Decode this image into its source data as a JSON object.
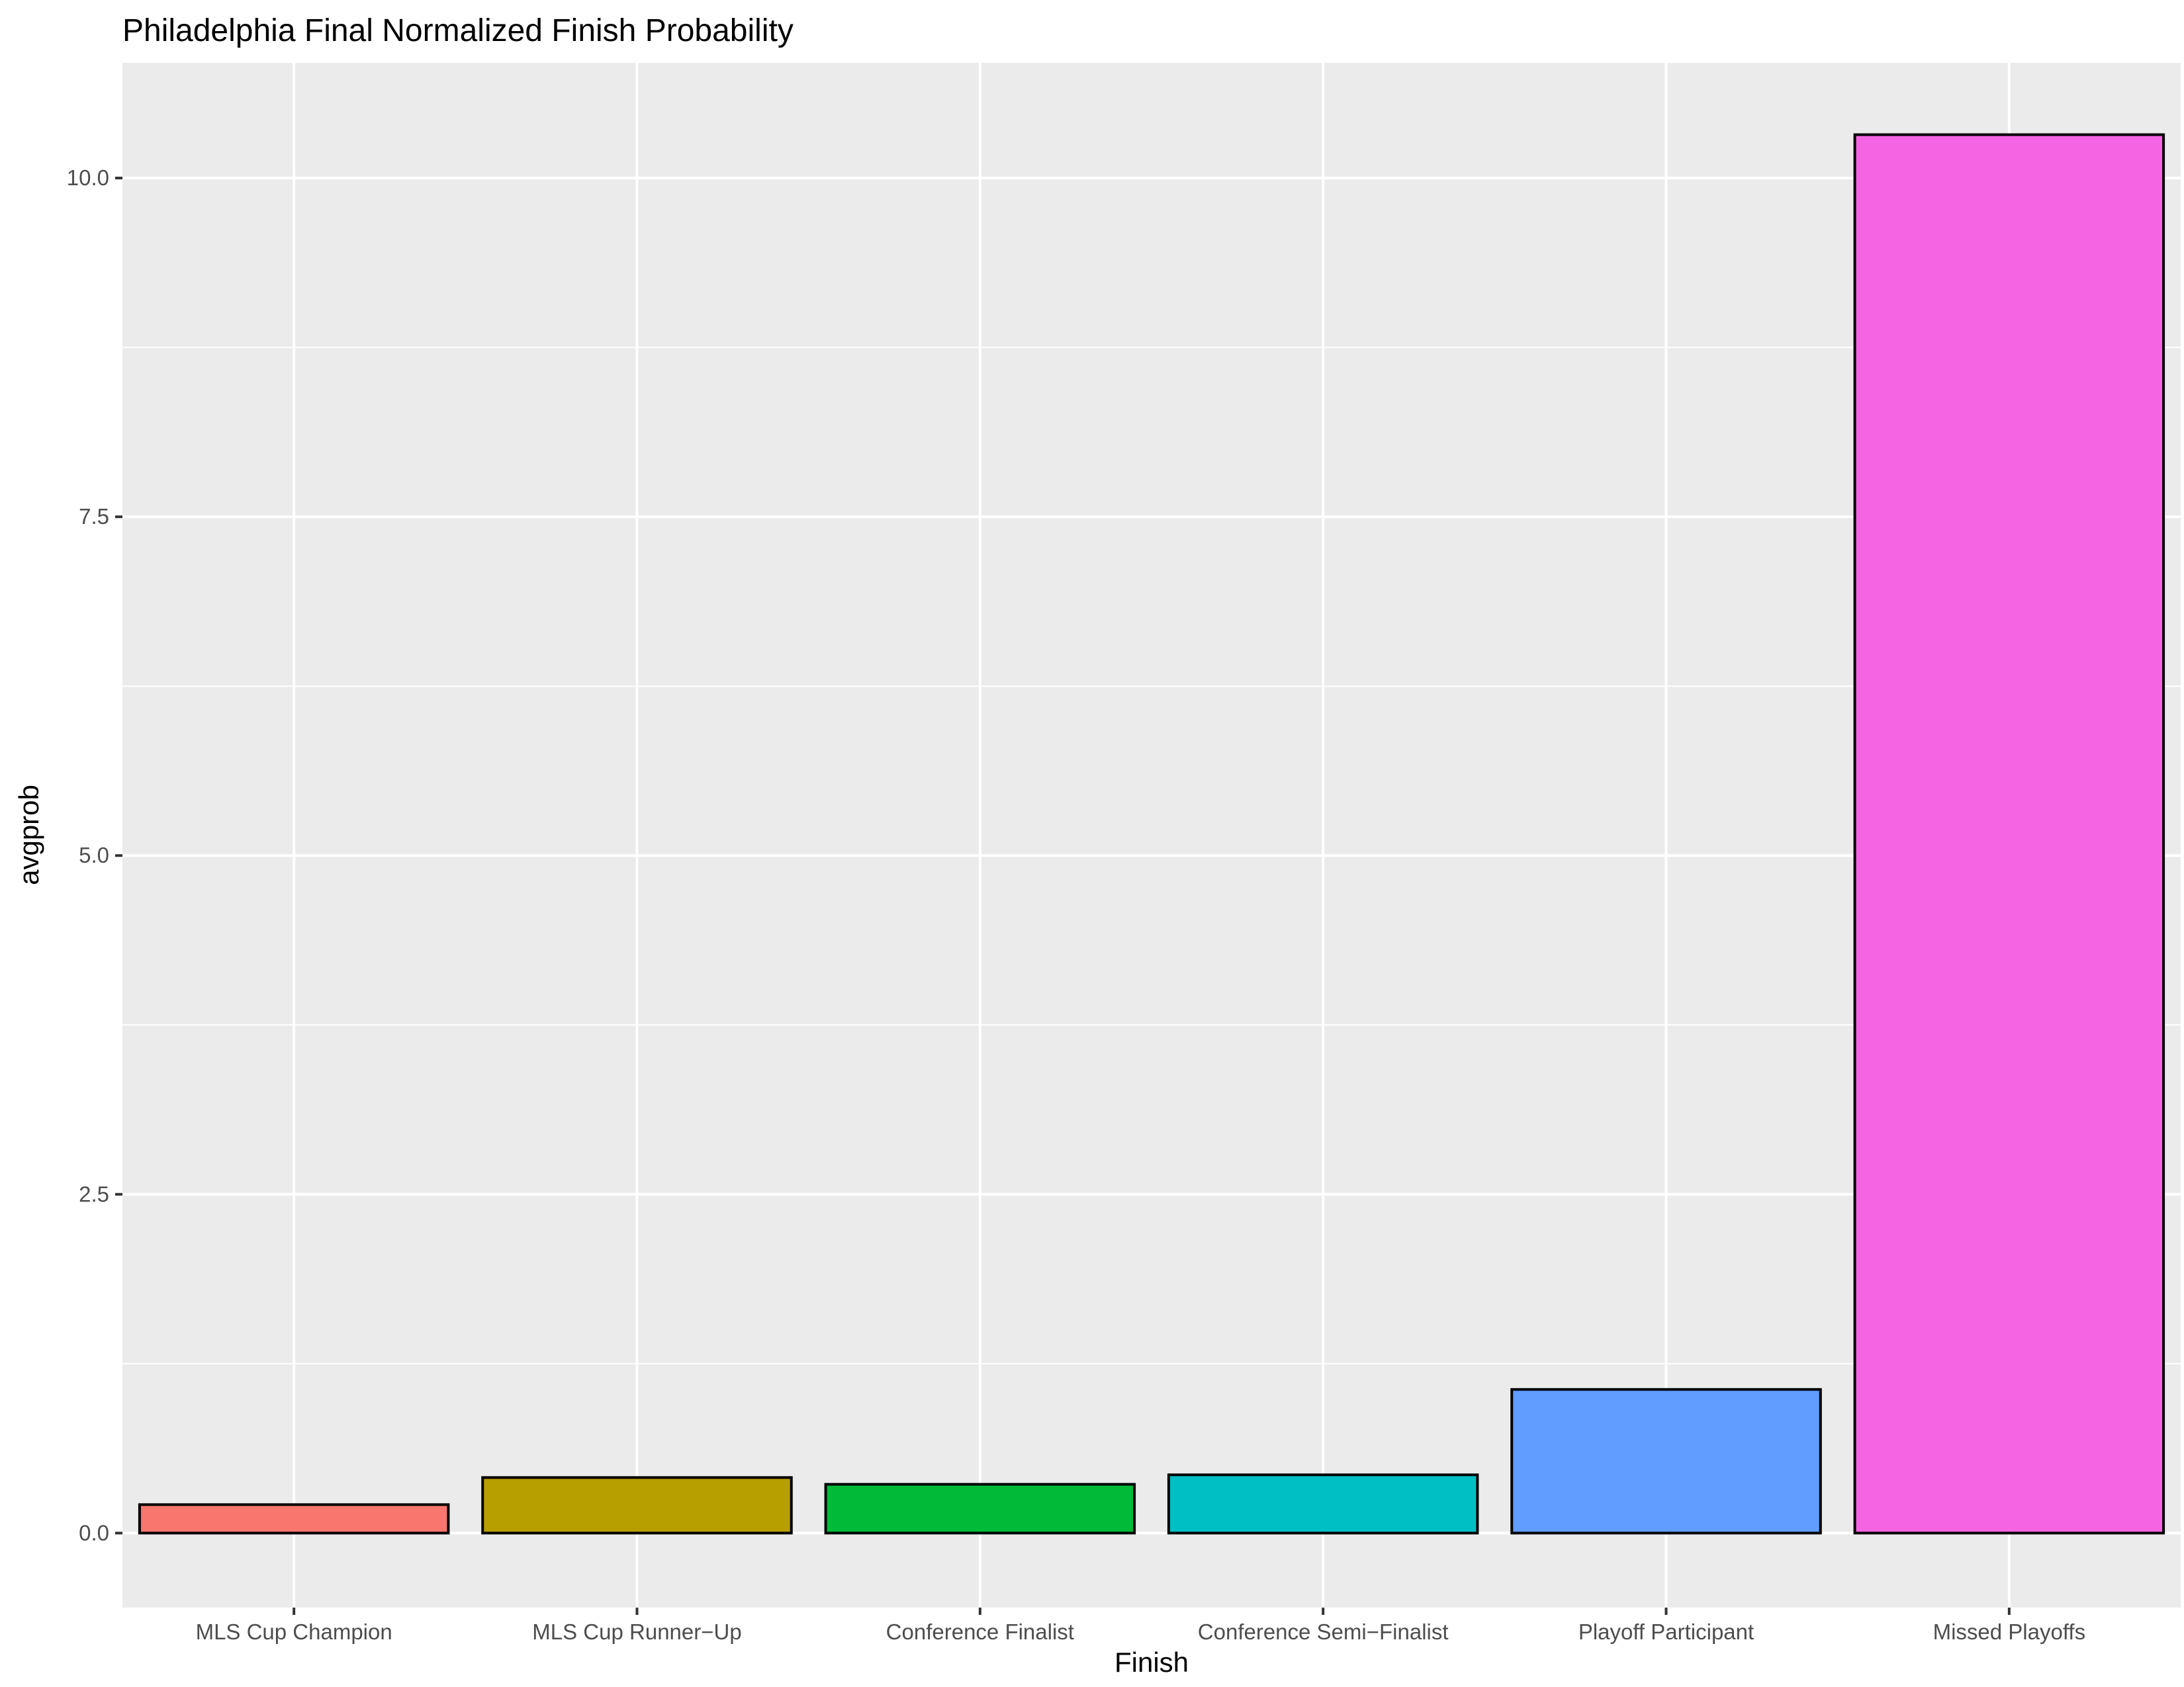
{
  "chart_data": {
    "type": "bar",
    "title": "Philadelphia Final Normalized Finish Probability",
    "xlabel": "Finish",
    "ylabel": "avgprob",
    "categories": [
      "MLS Cup Champion",
      "MLS Cup Runner−Up",
      "Conference Finalist",
      "Conference Semi−Finalist",
      "Playoff Participant",
      "Missed Playoffs"
    ],
    "values": [
      0.21,
      0.41,
      0.36,
      0.43,
      1.06,
      10.32
    ],
    "colors": [
      "#F8766D",
      "#B79F00",
      "#00BA38",
      "#00BFC4",
      "#619CFF",
      "#F564E3"
    ],
    "ylim": [
      -0.55,
      10.85
    ],
    "yticks": [
      0.0,
      2.5,
      5.0,
      7.5,
      10.0
    ],
    "ytick_labels": [
      "0.0",
      "2.5",
      "5.0",
      "7.5",
      "10.0"
    ],
    "grid": true,
    "legend": "none",
    "background": "#EBEBEB",
    "grid_color": "#FFFFFF"
  }
}
